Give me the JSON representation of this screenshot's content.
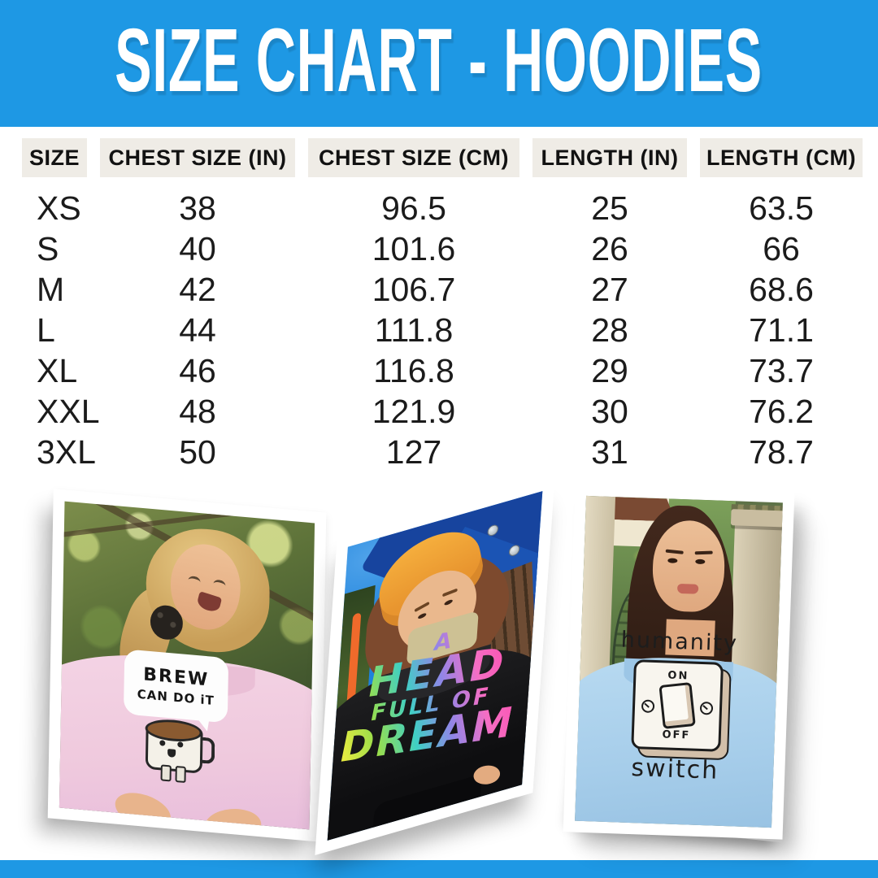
{
  "header": {
    "title": "SIZE CHART - HOODIES",
    "bg_color": "#1E98E4",
    "text_color": "#FFFFFF"
  },
  "table": {
    "header_bg": "#EFECE6",
    "text_color": "#1B1B1B",
    "columns": [
      "SIZE",
      "CHEST SIZE (IN)",
      "CHEST SIZE (CM)",
      "LENGTH (IN)",
      "LENGTH (CM)"
    ],
    "rows": [
      [
        "XS",
        "38",
        "96.5",
        "25",
        "63.5"
      ],
      [
        "S",
        "40",
        "101.6",
        "26",
        "66"
      ],
      [
        "M",
        "42",
        "106.7",
        "27",
        "68.6"
      ],
      [
        "L",
        "44",
        "111.8",
        "28",
        "71.1"
      ],
      [
        "XL",
        "46",
        "116.8",
        "29",
        "73.7"
      ],
      [
        "XXL",
        "48",
        "121.9",
        "30",
        "76.2"
      ],
      [
        "3XL",
        "50",
        "127",
        "31",
        "78.7"
      ]
    ]
  },
  "collage": {
    "photos": [
      {
        "id": "pink-hoodie-photo",
        "hoodie_color": "#F0CBDE",
        "graphic": {
          "line1": "BREW",
          "line2": "CAN DO iT"
        }
      },
      {
        "id": "black-hoodie-photo",
        "hoodie_color": "#141416",
        "graphic": {
          "line1": "A",
          "line2": "HEAD",
          "line3": "FULL OF",
          "line4": "DREAMS"
        }
      },
      {
        "id": "blue-hoodie-photo",
        "hoodie_color": "#AED3ED",
        "graphic": {
          "line1": "humanity",
          "switch_on": "ON",
          "switch_off": "OFF",
          "line2": "switch"
        }
      }
    ]
  },
  "footer": {
    "bg_color": "#1E98E4"
  }
}
